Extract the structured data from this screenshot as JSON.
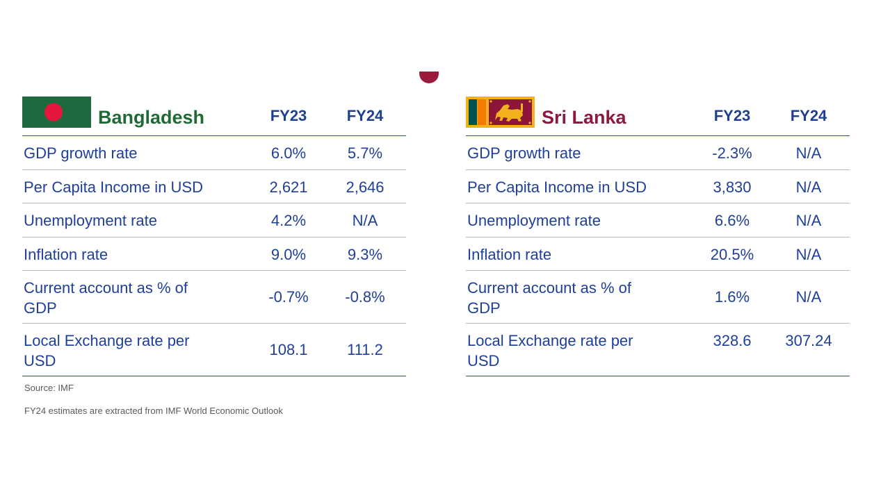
{
  "bangladesh": {
    "name": "Bangladesh",
    "year1": "FY23",
    "year2": "FY24",
    "flag_colors": {
      "field": "#1e6a3e",
      "disc": "#e3173e"
    },
    "rows": [
      {
        "label": "GDP growth rate",
        "fy23": "6.0%",
        "fy24": "5.7%"
      },
      {
        "label": "Per Capita Income in USD",
        "fy23": "2,621",
        "fy24": "2,646"
      },
      {
        "label": "Unemployment rate",
        "fy23": "4.2%",
        "fy24": "N/A"
      },
      {
        "label": "Inflation rate",
        "fy23": "9.0%",
        "fy24": "9.3%"
      },
      {
        "label": "Current account as % of GDP",
        "fy23": "-0.7%",
        "fy24": "-0.8%"
      },
      {
        "label": "Local Exchange rate per USD",
        "fy23": "108.1",
        "fy24": "111.2"
      }
    ]
  },
  "srilanka": {
    "name": "Sri Lanka",
    "year1": "FY23",
    "year2": "FY24",
    "flag_colors": {
      "border": "#f2b21b",
      "green": "#00534e",
      "orange": "#f57a00",
      "field": "#8d153a",
      "lion": "#f2b21b"
    },
    "rows": [
      {
        "label": "GDP growth rate",
        "fy23": "-2.3%",
        "fy24": "N/A"
      },
      {
        "label": "Per Capita Income in USD",
        "fy23": "3,830",
        "fy24": "N/A"
      },
      {
        "label": "Unemployment rate",
        "fy23": "6.6%",
        "fy24": "N/A"
      },
      {
        "label": "Inflation rate",
        "fy23": "20.5%",
        "fy24": "N/A"
      },
      {
        "label": "Current account as % of GDP",
        "fy23": "1.6%",
        "fy24": "N/A"
      },
      {
        "label": "Local Exchange rate per USD",
        "fy23": "328.6",
        "fy24": "307.24"
      }
    ]
  },
  "footnotes": {
    "source": "Source: IMF",
    "note": "FY24 estimates are extracted from IMF World Economic Outlook"
  },
  "colors": {
    "text_blue": "#1f3f99",
    "rule_blue": "#2d4f8f",
    "rule_grey": "#b9b9b9"
  }
}
